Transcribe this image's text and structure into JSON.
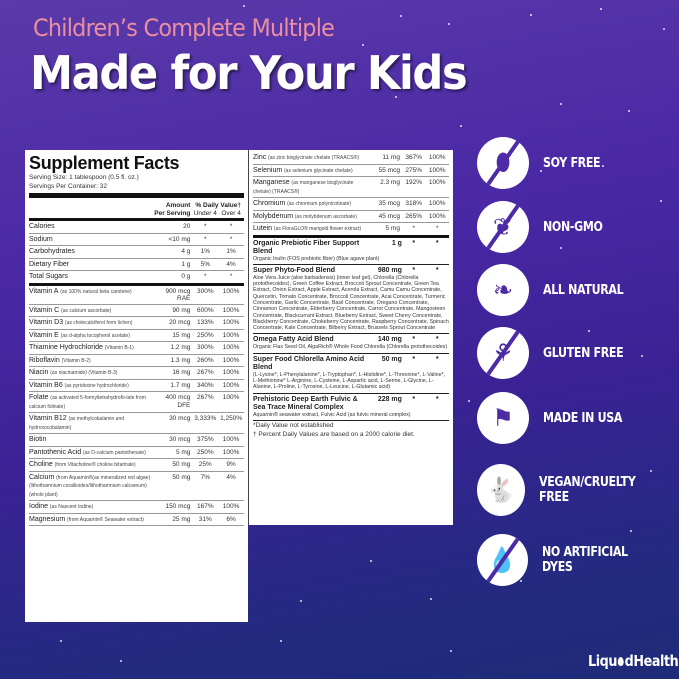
{
  "header": {
    "subtitle": "Children’s Complete Multiple",
    "title": "Made for Your Kids"
  },
  "facts": {
    "title": "Supplement Facts",
    "serving_size": "Serving Size: 1 tablespoon (0.5 fl. oz.)",
    "servings_per_container": "Servings Per Container: 32",
    "col_amount": "Amount Per Serving",
    "col_dv": "% Daily Value†",
    "col_under": "Under 4",
    "col_over": "Over 4",
    "left_rows": [
      {
        "name": "Calories",
        "note": "",
        "amount": "20",
        "under": "*",
        "over": "*"
      },
      {
        "name": "Sodium",
        "note": "",
        "amount": "<10 mg",
        "under": "*",
        "over": "*"
      },
      {
        "name": "Carbohydrates",
        "note": "",
        "amount": "4 g",
        "under": "1%",
        "over": "1%"
      },
      {
        "name": "Dietary Fiber",
        "note": "",
        "amount": "1 g",
        "under": "5%",
        "over": "4%"
      },
      {
        "name": "Total Sugars",
        "note": "",
        "amount": "0 g",
        "under": "*",
        "over": "*",
        "thick": true
      },
      {
        "name": "Vitamin A",
        "note": "(as 100% natural beta carotene)",
        "amount": "900 mcg RAE",
        "under": "300%",
        "over": "100%"
      },
      {
        "name": "Vitamin C",
        "note": "(as calcium ascorbate)",
        "amount": "90 mg",
        "under": "600%",
        "over": "100%"
      },
      {
        "name": "Vitamin D3",
        "note": "(as cholecalciferol from lichen)",
        "amount": "20 mcg",
        "under": "133%",
        "over": "100%"
      },
      {
        "name": "Vitamin E",
        "note": "(as d-alpha tocopherol acetate)",
        "amount": "15 mg",
        "under": "250%",
        "over": "100%"
      },
      {
        "name": "Thiamine Hydrochloride",
        "note": "(Vitamin B-1)",
        "amount": "1.2 mg",
        "under": "300%",
        "over": "100%"
      },
      {
        "name": "Riboflavin",
        "note": "(Vitamin B-2)",
        "amount": "1.3 mg",
        "under": "260%",
        "over": "100%"
      },
      {
        "name": "Niacin",
        "note": "(as niacinamide) (Vitamin B-3)",
        "amount": "16 mg",
        "under": "267%",
        "over": "100%"
      },
      {
        "name": "Vitamin B6",
        "note": "(as pyridoxine hydrochloride)",
        "amount": "1.7 mg",
        "under": "340%",
        "over": "100%"
      },
      {
        "name": "Folate",
        "note": "(as activated 5-formyltetrahydrofo-late from calcium folinate)",
        "amount": "400 mcg DFE",
        "under": "267%",
        "over": "100%"
      },
      {
        "name": "Vitamin B12",
        "note": "(as methylcobalamin and hydroxocobalamin)",
        "amount": "30 mcg",
        "under": "3,333%",
        "over": "1,250%"
      },
      {
        "name": "Biotin",
        "note": "",
        "amount": "30 mcg",
        "under": "375%",
        "over": "100%"
      },
      {
        "name": "Pantothenic Acid",
        "note": "(as D-calcium pantothenate)",
        "amount": "5 mg",
        "under": "250%",
        "over": "100%"
      },
      {
        "name": "Choline",
        "note": "(from Vitacholine® choline bitartrate)",
        "amount": "50 mg",
        "under": "25%",
        "over": "9%"
      },
      {
        "name": "Calcium",
        "note": "(from Aquamin®(as mineralized red algae)(lithothamnium corallioides/lithothamnium calcareum)(whole plant)",
        "amount": "50 mg",
        "under": "7%",
        "over": "4%"
      },
      {
        "name": "Iodine",
        "note": "(as Nascent Iodine)",
        "amount": "150 mcg",
        "under": "167%",
        "over": "100%"
      },
      {
        "name": "Magnesium",
        "note": "(from Aquamin® Seawater extract)",
        "amount": "25 mg",
        "under": "31%",
        "over": "6%"
      }
    ],
    "right_rows": [
      {
        "name": "Zinc",
        "note": "(as zinc bisglycinate chelate (TRAACS®)",
        "amount": "11 mg",
        "under": "367%",
        "over": "100%"
      },
      {
        "name": "Selenium",
        "note": "(as selenium glycinate chelate)",
        "amount": "55 mcg",
        "under": "275%",
        "over": "100%"
      },
      {
        "name": "Manganese",
        "note": "(as manganese bisglycinate chelate) (TRAACS®)",
        "amount": "2.3 mg",
        "under": "192%",
        "over": "100%"
      },
      {
        "name": "Chromium",
        "note": "(as chromium polynicotinate)",
        "amount": "35 mcg",
        "under": "318%",
        "over": "100%"
      },
      {
        "name": "Molybdenum",
        "note": "(as molybdenum ascorbate)",
        "amount": "45 mcg",
        "under": "265%",
        "over": "100%"
      },
      {
        "name": "Lutein",
        "note": "(as FloraGLO® marigold flower extract)",
        "amount": "5 mg",
        "under": "*",
        "over": "*",
        "thick": true
      }
    ],
    "blends": [
      {
        "name": "Organic Prebiotic Fiber Support Blend",
        "amount": "1 g",
        "under": "*",
        "over": "*",
        "desc": "Organic Inulin (FOS prebiotic fiber) (Blue agave plant)"
      },
      {
        "name": "Super Phyto-Food Blend",
        "amount": "980 mg",
        "under": "*",
        "over": "*",
        "desc": "Aloe Vera Juice (aloe barbadensis) (inner leaf gel), Chlorella (Chlorella protothecoides), Green Coffee Extract, Broccoli Sprout Concentrate, Green Tea Extract, Onion Extract, Apple Extract, Acerola Extract, Camu Camu Concentrate, Quercetin, Tomato Concentrate, Broccoli Concentrate, Acai Concentrate, Turmeric Concentrate, Garlic Concentrate, Basil Concentrate, Oregano Concentrate, Cinnamon Concentrate, Elderberry Concentrate, Carrot Concentrate, Mangosteen Concentrate, Blackcurrant Extract, Blueberry Extract, Sweet Cherry Concentrate, Blackberry Concentrate, Chokeberry Concentrate, Raspberry Concentrate, Spinach Concentrate, Kale Concentrate, Bilberry Extract, Brussels Sprout Concentrate"
      },
      {
        "name": "Omega Fatty Acid Blend",
        "amount": "140 mg",
        "under": "*",
        "over": "*",
        "desc": "Organic Flax Seed Oil, AlgaRich® Whole Food Chlorella (Chlorella protothecoides)"
      },
      {
        "name": "Super Food Chlorella Amino Acid Blend",
        "amount": "50 mg",
        "under": "*",
        "over": "*",
        "desc": "(L-Lysine*, L-Phenylalanine*, L-Tryptophan*, L-Histidine*, L-Threonine*, L-Valine*, L-Methionine* L-Arginine, L-Cysteine, L-Aspartic acid, L-Serine, L-Glycine, L-Alanine, L-Proline, L-Tyrosine, L-Leucine, L-Glutamic acid)"
      },
      {
        "name": "Prehistoric Deep Earth Fulvic & Sea Trace Mineral Complex",
        "amount": "228 mg",
        "under": "*",
        "over": "*",
        "desc": "Aquamin® seawater extract, Fulvic Acid (as fulvic mineral complex)"
      }
    ],
    "footnote1": "*Daily Value not established",
    "footnote2": "† Percent Daily Values are based on a 2000 calorie diet."
  },
  "badges": [
    {
      "label": "SOY FREE",
      "icon": "soy-beans-crossed-icon",
      "glyph": "⬮",
      "slash": true
    },
    {
      "label": "NON-GMO",
      "icon": "plant-crossed-icon",
      "glyph": "❦",
      "slash": true
    },
    {
      "label": "ALL NATURAL",
      "icon": "leaf-icon",
      "glyph": "❧",
      "slash": false
    },
    {
      "label": "GLUTEN FREE",
      "icon": "wheat-crossed-icon",
      "glyph": "⚘",
      "slash": true
    },
    {
      "label": "MADE IN USA",
      "icon": "usa-flag-map-icon",
      "glyph": "⚑",
      "slash": false
    },
    {
      "label": "VEGAN/CRUELTY FREE",
      "icon": "rabbit-icon",
      "glyph": "🐇",
      "slash": false
    },
    {
      "label": "NO ARTIFICIAL DYES",
      "icon": "dye-drop-crossed-icon",
      "glyph": "💧",
      "slash": true
    }
  ],
  "logo": {
    "text_a": "Liqu",
    "text_b": "dHealth",
    "text_c": "."
  },
  "colors": {
    "subtitle": "#ec8ea0",
    "icon_purple": "#4d2aa6",
    "bg_top": "#5a3aa9",
    "bg_bottom": "#1e2b78"
  }
}
